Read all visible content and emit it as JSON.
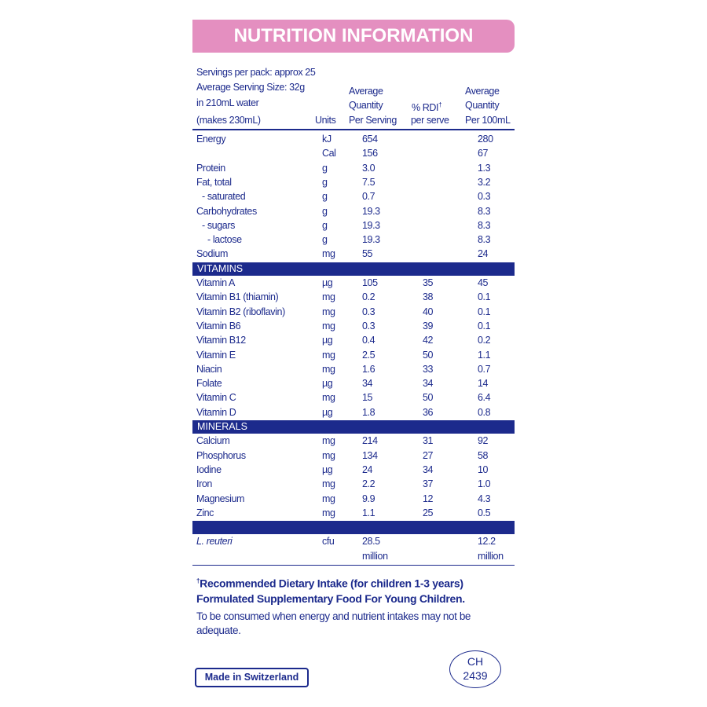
{
  "header": {
    "title": "NUTRITION INFORMATION"
  },
  "serving_info": [
    "Servings per pack: approx 25",
    "Average Serving Size: 32g",
    "in 210mL water",
    "(makes 230mL)"
  ],
  "columns": {
    "units": "Units",
    "serving": [
      "Average",
      "Quantity",
      "Per Serving"
    ],
    "rdi": [
      "% RDI",
      "per serve"
    ],
    "rdi_mark": "†",
    "per100": [
      "Average",
      "Quantity",
      "Per 100mL"
    ]
  },
  "sections": [
    {
      "title": null,
      "rows": [
        {
          "name": "Energy",
          "unit": "kJ",
          "serving": "654",
          "rdi": null,
          "per100": "280"
        },
        {
          "name": null,
          "unit": "Cal",
          "serving": "156",
          "rdi": null,
          "per100": "67"
        },
        {
          "name": "Protein",
          "unit": "g",
          "serving": "3.0",
          "rdi": null,
          "per100": "1.3"
        },
        {
          "name": "Fat, total",
          "unit": "g",
          "serving": "7.5",
          "rdi": null,
          "per100": "3.2"
        },
        {
          "name": "- saturated",
          "unit": "g",
          "serving": "0.7",
          "rdi": null,
          "per100": "0.3",
          "indent": 1
        },
        {
          "name": "Carbohydrates",
          "unit": "g",
          "serving": "19.3",
          "rdi": null,
          "per100": "8.3"
        },
        {
          "name": "- sugars",
          "unit": "g",
          "serving": "19.3",
          "rdi": null,
          "per100": "8.3",
          "indent": 1
        },
        {
          "name": "- lactose",
          "unit": "g",
          "serving": "19.3",
          "rdi": null,
          "per100": "8.3",
          "indent": 2
        },
        {
          "name": "Sodium",
          "unit": "mg",
          "serving": "55",
          "rdi": null,
          "per100": "24"
        }
      ]
    },
    {
      "title": "VITAMINS",
      "rows": [
        {
          "name": "Vitamin A",
          "unit": "µg",
          "serving": "105",
          "rdi": "35",
          "per100": "45"
        },
        {
          "name": "Vitamin B1 (thiamin)",
          "unit": "mg",
          "serving": "0.2",
          "rdi": "38",
          "per100": "0.1"
        },
        {
          "name": "Vitamin B2 (riboflavin)",
          "unit": "mg",
          "serving": "0.3",
          "rdi": "40",
          "per100": "0.1"
        },
        {
          "name": "Vitamin B6",
          "unit": "mg",
          "serving": "0.3",
          "rdi": "39",
          "per100": "0.1"
        },
        {
          "name": "Vitamin B12",
          "unit": "µg",
          "serving": "0.4",
          "rdi": "42",
          "per100": "0.2"
        },
        {
          "name": "Vitamin E",
          "unit": "mg",
          "serving": "2.5",
          "rdi": "50",
          "per100": "1.1"
        },
        {
          "name": "Niacin",
          "unit": "mg",
          "serving": "1.6",
          "rdi": "33",
          "per100": "0.7"
        },
        {
          "name": "Folate",
          "unit": "µg",
          "serving": "34",
          "rdi": "34",
          "per100": "14"
        },
        {
          "name": "Vitamin C",
          "unit": "mg",
          "serving": "15",
          "rdi": "50",
          "per100": "6.4"
        },
        {
          "name": "Vitamin D",
          "unit": "µg",
          "serving": "1.8",
          "rdi": "36",
          "per100": "0.8"
        }
      ]
    },
    {
      "title": "MINERALS",
      "rows": [
        {
          "name": "Calcium",
          "unit": "mg",
          "serving": "214",
          "rdi": "31",
          "per100": "92"
        },
        {
          "name": "Phosphorus",
          "unit": "mg",
          "serving": "134",
          "rdi": "27",
          "per100": "58"
        },
        {
          "name": "Iodine",
          "unit": "µg",
          "serving": "24",
          "rdi": "34",
          "per100": "10"
        },
        {
          "name": "Iron",
          "unit": "mg",
          "serving": "2.2",
          "rdi": "37",
          "per100": "1.0"
        },
        {
          "name": "Magnesium",
          "unit": "mg",
          "serving": "9.9",
          "rdi": "12",
          "per100": "4.3"
        },
        {
          "name": "Zinc",
          "unit": "mg",
          "serving": "1.1",
          "rdi": "25",
          "per100": "0.5"
        }
      ]
    },
    {
      "title": null,
      "rows": [
        {
          "name": "L. reuteri",
          "unit": "cfu",
          "serving": "28.5 million",
          "rdi": null,
          "per100": "12.2 million",
          "italic": true
        }
      ]
    }
  ],
  "footnote": {
    "mark": "†",
    "text": "Recommended Dietary Intake (for children 1-3 years)"
  },
  "statement": "Formulated Supplementary Food For Young Children.",
  "advice": "To be consumed when energy and nutrient intakes may not be adequate.",
  "origin": "Made in Switzerland",
  "code": [
    "CH",
    "2439"
  ]
}
